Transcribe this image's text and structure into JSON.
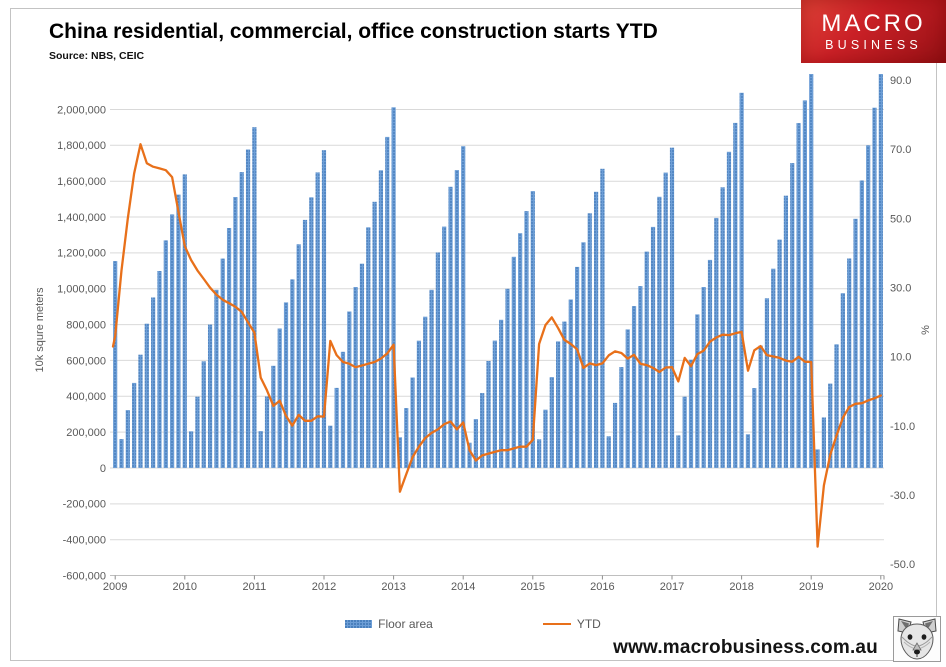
{
  "header": {
    "title": "China residential, commercial, office construction starts YTD",
    "source": "Source: NBS, CEIC"
  },
  "logo": {
    "line1": "MACRO",
    "line2": "BUSINESS",
    "bg_color": "#c0191f",
    "text_color": "#ffffff"
  },
  "footer": {
    "url": "www.macrobusiness.com.au"
  },
  "legend": {
    "bar_label": "Floor area",
    "line_label": "YTD"
  },
  "colors": {
    "bar_base": "#6d9ed6",
    "bar_dot": "#3f76b5",
    "line": "#e8701a",
    "gridline": "#d9d9d9",
    "axis_line": "#bfbfbf",
    "axis_text": "#595959"
  },
  "chart_data": {
    "type": "combo (bar + line)",
    "title": "China residential, commercial, office construction starts YTD",
    "categories_note": "Monthly cumulative (YTD) values, Dec 2009 then Feb-Dec of each year 2010-2020 (Jan-Feb combined); bars reset each February",
    "x_axis": {
      "year_labels": [
        "2009",
        "2010",
        "2011",
        "2012",
        "2013",
        "2014",
        "2015",
        "2016",
        "2017",
        "2018",
        "2019",
        "2020"
      ],
      "year_label_category_indices": [
        0,
        11,
        22,
        33,
        44,
        55,
        66,
        77,
        88,
        99,
        110,
        121
      ]
    },
    "left_axis": {
      "title": "10k squre meters",
      "min": -600000,
      "max": 2200000,
      "tick_step": 200000,
      "tick_values": [
        2000000,
        1800000,
        1600000,
        1400000,
        1200000,
        1000000,
        800000,
        600000,
        400000,
        200000,
        0,
        -200000,
        -400000,
        -600000
      ],
      "tick_labels": [
        "2,000,000",
        "1,800,000",
        "1,600,000",
        "1,400,000",
        "1,200,000",
        "1,000,000",
        "800,000",
        "600,000",
        "400,000",
        "200,000",
        "0",
        "-200,000",
        "-400,000",
        "-600,000"
      ]
    },
    "right_axis": {
      "title": "%",
      "min": -50,
      "max": 90,
      "tick_values": [
        90,
        70,
        50,
        30,
        10,
        -10,
        -30,
        -50
      ],
      "tick_labels": [
        "90.0",
        "70.0",
        "50.0",
        "30.0",
        "10.0",
        "-10.0",
        "-30.0",
        "-50.0"
      ]
    },
    "grid": true,
    "legend_position": "bottom",
    "series": [
      {
        "name": "Floor area",
        "type": "bar",
        "axis": "left",
        "values": [
          1154000,
          161000,
          323000,
          475000,
          632000,
          805000,
          951000,
          1099000,
          1270000,
          1415000,
          1525000,
          1638000,
          205000,
          398000,
          595000,
          800000,
          994000,
          1168000,
          1339000,
          1512000,
          1651000,
          1777000,
          1901000,
          206000,
          399000,
          570000,
          778000,
          924000,
          1052000,
          1248000,
          1384000,
          1510000,
          1649000,
          1773000,
          236000,
          447000,
          648000,
          873000,
          1010000,
          1140000,
          1343000,
          1485000,
          1661000,
          1847000,
          2012000,
          171000,
          334000,
          505000,
          710000,
          844000,
          994000,
          1202000,
          1347000,
          1569000,
          1662000,
          1795000,
          141000,
          273000,
          418000,
          597000,
          711000,
          827000,
          1000000,
          1178000,
          1310000,
          1433000,
          1545000,
          160000,
          325000,
          507000,
          706000,
          817000,
          940000,
          1122000,
          1259000,
          1421000,
          1541000,
          1669000,
          177000,
          363000,
          563000,
          773000,
          903000,
          1015000,
          1207000,
          1345000,
          1513000,
          1648000,
          1787000,
          182000,
          398000,
          604000,
          857000,
          1010000,
          1161000,
          1395000,
          1566000,
          1764000,
          1925000,
          2093000,
          188000,
          446000,
          683000,
          947000,
          1112000,
          1274000,
          1519000,
          1701000,
          1924000,
          2051000,
          2272000,
          104000,
          282000,
          471000,
          690000,
          975000,
          1169000,
          1390000,
          1604000,
          1800000,
          2010000,
          2245000
        ]
      },
      {
        "name": "YTD",
        "type": "line",
        "axis": "right",
        "lead_in_value": 13,
        "values": [
          16,
          35,
          50,
          63,
          71.5,
          66,
          65,
          64.5,
          64,
          62,
          52,
          42,
          38,
          35,
          32.5,
          30,
          28,
          26.5,
          25.5,
          24.5,
          23,
          20,
          17,
          4,
          0.3,
          -4.2,
          -2.7,
          -7.1,
          -9.9,
          -6.8,
          -8.5,
          -8.5,
          -7.2,
          -7.3,
          14.6,
          10.5,
          8.5,
          8,
          7,
          7.5,
          8,
          8.5,
          9.5,
          11,
          13.5,
          -29,
          -24,
          -19,
          -16,
          -13.5,
          -12,
          -11,
          -9.5,
          -8.7,
          -11,
          -9,
          -17,
          -20,
          -18.5,
          -18,
          -17.5,
          -17,
          -17,
          -16.5,
          -16,
          -16,
          -14,
          13.7,
          19.2,
          21.4,
          18.3,
          14.9,
          13.7,
          12.2,
          6.8,
          8.1,
          7.6,
          8.1,
          10.4,
          11.6,
          11.1,
          9.5,
          10.6,
          8,
          7.6,
          6.8,
          5.6,
          6.9,
          7,
          2.9,
          9.7,
          7.3,
          10.8,
          11.8,
          14.4,
          15.6,
          16.4,
          16.3,
          16.8,
          17.2,
          6,
          11.9,
          13.1,
          10.5,
          10.1,
          9.7,
          8.9,
          8.6,
          10,
          8.6,
          8.5,
          -44.9,
          -27.2,
          -18.4,
          -12.8,
          -7.6,
          -4.5,
          -3.6,
          -3.4,
          -2.6,
          -2,
          -1.2
        ]
      }
    ]
  }
}
